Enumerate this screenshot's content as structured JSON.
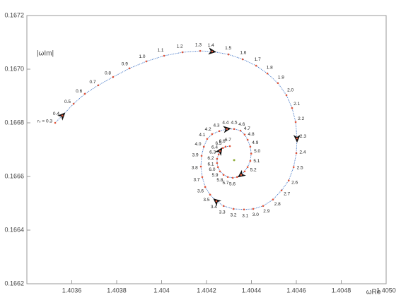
{
  "chart_data": {
    "type": "line",
    "x_label": "ωRe",
    "y_label": "|ωIm|",
    "xlim": [
      1.4034,
      1.405
    ],
    "ylim": [
      0.1662,
      0.1672
    ],
    "xticks": [
      1.4036,
      1.4038,
      1.404,
      1.4042,
      1.4044,
      1.4046,
      1.4048,
      {
        "value": 1.405,
        "label": "1.4050"
      }
    ],
    "yticks": [
      0.1662,
      0.1664,
      0.1666,
      0.1668,
      {
        "value": 0.167,
        "label": "0.1670"
      },
      0.1672
    ],
    "line_color": "#4a7cc9",
    "point_color": "#e0553a",
    "x": [
      1.403526,
      1.403558,
      1.403608,
      1.403658,
      1.403718,
      1.403784,
      1.403857,
      1.403932,
      1.404011,
      1.404093,
      1.404172,
      1.404225,
      1.404298,
      1.404361,
      1.404421,
      1.404471,
      1.404518,
      1.404556,
      1.404581,
      1.404597,
      1.404603,
      1.4046,
      1.404588,
      1.404566,
      1.404534,
      1.404496,
      1.404452,
      1.404408,
      1.404367,
      1.40432,
      1.404276,
      1.404244,
      1.404216,
      1.404194,
      1.404181,
      1.404175,
      1.404178,
      1.404188,
      1.404203,
      1.404225,
      1.404257,
      1.404291,
      1.404323,
      1.404351,
      1.40437,
      1.404383,
      1.404395,
      1.404399,
      1.404395,
      1.404383,
      1.40437,
      1.404354,
      1.404336,
      1.404317,
      1.404295,
      1.404276,
      1.40426,
      1.404251,
      1.404247,
      1.404247,
      1.404254,
      1.40426,
      1.404273,
      1.404285,
      1.404304
    ],
    "y": [
      0.1668,
      0.166827,
      0.166871,
      0.166908,
      0.16694,
      0.166971,
      0.167003,
      0.167029,
      0.16705,
      0.167063,
      0.167068,
      0.167066,
      0.167055,
      0.167037,
      0.167013,
      0.166984,
      0.166948,
      0.166903,
      0.166855,
      0.166803,
      0.166742,
      0.166687,
      0.166635,
      0.166585,
      0.166548,
      0.166514,
      0.16649,
      0.166479,
      0.166477,
      0.166479,
      0.16649,
      0.166508,
      0.166532,
      0.166561,
      0.166598,
      0.166637,
      0.166677,
      0.166711,
      0.16674,
      0.166758,
      0.166769,
      0.166777,
      0.166777,
      0.166771,
      0.166756,
      0.166737,
      0.166711,
      0.166685,
      0.166658,
      0.166635,
      0.166619,
      0.166606,
      0.166598,
      0.166595,
      0.166598,
      0.166606,
      0.166619,
      0.166635,
      0.16665,
      0.166666,
      0.166682,
      0.166695,
      0.166706,
      0.166711,
      0.166713
    ],
    "point_labels": [
      "rₛ = 0.3",
      "0.4",
      "0.5",
      "0.6",
      "0.7",
      "0.8",
      "0.9",
      "1.0",
      "1.1",
      "1.2",
      "1.3",
      "1.4",
      "1.5",
      "1.6",
      "1.7",
      "1.8",
      "1.9",
      "2.0",
      "2.1",
      "2.2",
      "2.3",
      "2.4",
      "2.5",
      "2.6",
      "2.7",
      "2.8",
      "2.9",
      "3.0",
      "3.1",
      "3.2",
      "3.3",
      "3.4",
      "3.5",
      "3.6",
      "3.7",
      "3.8",
      "3.9",
      "4.0",
      "4.1",
      "4.2",
      "4.3",
      "4.4",
      "4.5",
      "4.6",
      "4.7",
      "4.8",
      "4.9",
      "5.0",
      "5.1",
      "5.2",
      null,
      null,
      null,
      "5.6",
      "5.7",
      "5.8",
      "5.9",
      "6.0",
      "6.1",
      "6.2",
      "6.3",
      "6.4",
      "6.5",
      "6.6",
      "6.7"
    ],
    "center_point": {
      "x": 1.404323,
      "y": 0.166661,
      "color": "#8fae3a"
    }
  }
}
